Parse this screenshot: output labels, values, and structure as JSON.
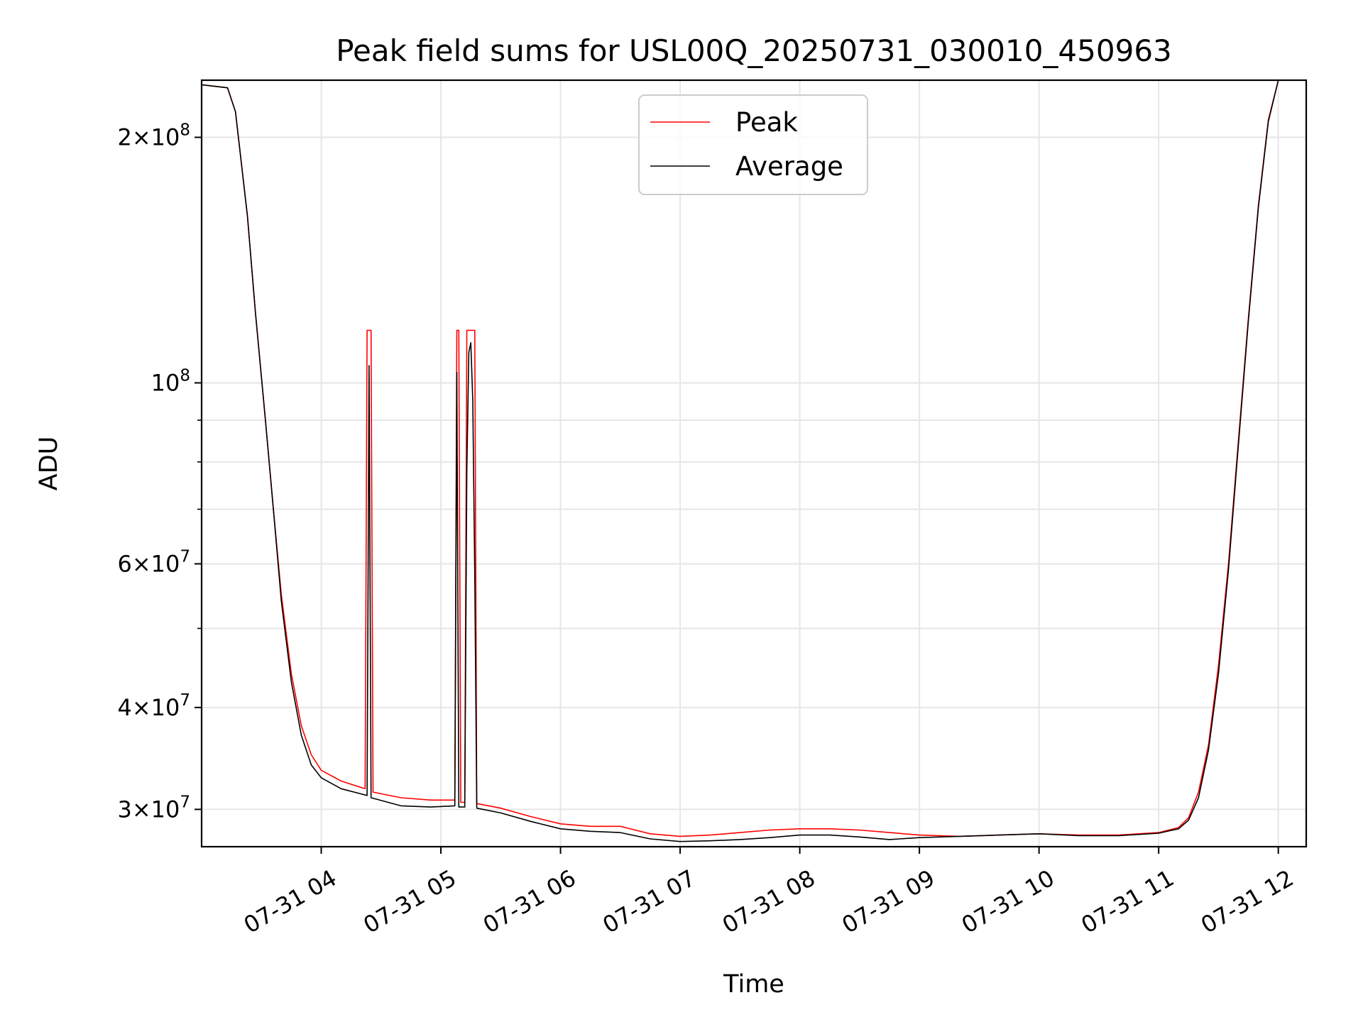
{
  "chart_data": {
    "type": "line",
    "title": "Peak field sums for USL00Q_20250731_030010_450963",
    "xlabel": "Time",
    "ylabel": "ADU",
    "y_scale": "log",
    "ylim": [
      27000000,
      235000000
    ],
    "xlim": [
      "2025-07-31T03:00",
      "2025-07-31T12:14"
    ],
    "grid": true,
    "legend_position": "upper center",
    "x_tick_labels": [
      "07-31 04",
      "07-31 05",
      "07-31 06",
      "07-31 07",
      "07-31 08",
      "07-31 09",
      "07-31 10",
      "07-31 11",
      "07-31 12"
    ],
    "x_ticks": [
      "2025-07-31T04:00",
      "2025-07-31T05:00",
      "2025-07-31T06:00",
      "2025-07-31T07:00",
      "2025-07-31T08:00",
      "2025-07-31T09:00",
      "2025-07-31T10:00",
      "2025-07-31T11:00",
      "2025-07-31T12:00"
    ],
    "y_major_ticks": [
      {
        "value": 30000000,
        "label_base": "3×10",
        "label_exp": "7"
      },
      {
        "value": 40000000,
        "label_base": "4×10",
        "label_exp": "7"
      },
      {
        "value": 60000000,
        "label_base": "6×10",
        "label_exp": "7"
      },
      {
        "value": 100000000,
        "label_base": "10",
        "label_exp": "8"
      },
      {
        "value": 200000000,
        "label_base": "2×10",
        "label_exp": "8"
      }
    ],
    "y_minor_ticks": [
      50000000,
      70000000,
      80000000,
      90000000
    ],
    "series": [
      {
        "name": "Peak",
        "color": "#ff0000",
        "points": [
          [
            "2025-07-31T03:00",
            232000000
          ],
          [
            "2025-07-31T03:13",
            230000000
          ],
          [
            "2025-07-31T03:17",
            215000000
          ],
          [
            "2025-07-31T03:23",
            160000000
          ],
          [
            "2025-07-31T03:27",
            122000000
          ],
          [
            "2025-07-31T03:32",
            90000000
          ],
          [
            "2025-07-31T03:36",
            70000000
          ],
          [
            "2025-07-31T03:40",
            55000000
          ],
          [
            "2025-07-31T03:45",
            44000000
          ],
          [
            "2025-07-31T03:50",
            38000000
          ],
          [
            "2025-07-31T03:55",
            35000000
          ],
          [
            "2025-07-31T04:00",
            33500000
          ],
          [
            "2025-07-31T04:10",
            32500000
          ],
          [
            "2025-07-31T04:22",
            31800000
          ],
          [
            "2025-07-31T04:23",
            116000000
          ],
          [
            "2025-07-31T04:25",
            116000000
          ],
          [
            "2025-07-31T04:26",
            31500000
          ],
          [
            "2025-07-31T04:40",
            31000000
          ],
          [
            "2025-07-31T04:55",
            30800000
          ],
          [
            "2025-07-31T05:07",
            30800000
          ],
          [
            "2025-07-31T05:08",
            116000000
          ],
          [
            "2025-07-31T05:09",
            116000000
          ],
          [
            "2025-07-31T05:10",
            30600000
          ],
          [
            "2025-07-31T05:12",
            30600000
          ],
          [
            "2025-07-31T05:13",
            116000000
          ],
          [
            "2025-07-31T05:17",
            116000000
          ],
          [
            "2025-07-31T05:18",
            30500000
          ],
          [
            "2025-07-31T05:30",
            30100000
          ],
          [
            "2025-07-31T05:45",
            29400000
          ],
          [
            "2025-07-31T06:00",
            28800000
          ],
          [
            "2025-07-31T06:15",
            28600000
          ],
          [
            "2025-07-31T06:30",
            28600000
          ],
          [
            "2025-07-31T06:45",
            28000000
          ],
          [
            "2025-07-31T07:00",
            27800000
          ],
          [
            "2025-07-31T07:15",
            27900000
          ],
          [
            "2025-07-31T07:30",
            28100000
          ],
          [
            "2025-07-31T07:45",
            28300000
          ],
          [
            "2025-07-31T08:00",
            28400000
          ],
          [
            "2025-07-31T08:15",
            28400000
          ],
          [
            "2025-07-31T08:30",
            28300000
          ],
          [
            "2025-07-31T08:45",
            28100000
          ],
          [
            "2025-07-31T09:00",
            27900000
          ],
          [
            "2025-07-31T09:20",
            27800000
          ],
          [
            "2025-07-31T09:40",
            27900000
          ],
          [
            "2025-07-31T10:00",
            28000000
          ],
          [
            "2025-07-31T10:20",
            27900000
          ],
          [
            "2025-07-31T10:40",
            27900000
          ],
          [
            "2025-07-31T11:00",
            28100000
          ],
          [
            "2025-07-31T11:10",
            28500000
          ],
          [
            "2025-07-31T11:15",
            29300000
          ],
          [
            "2025-07-31T11:20",
            31500000
          ],
          [
            "2025-07-31T11:25",
            36000000
          ],
          [
            "2025-07-31T11:30",
            45000000
          ],
          [
            "2025-07-31T11:35",
            60000000
          ],
          [
            "2025-07-31T11:40",
            85000000
          ],
          [
            "2025-07-31T11:45",
            120000000
          ],
          [
            "2025-07-31T11:50",
            165000000
          ],
          [
            "2025-07-31T11:55",
            210000000
          ],
          [
            "2025-07-31T12:00",
            235000000
          ]
        ]
      },
      {
        "name": "Average",
        "color": "#000000",
        "points": [
          [
            "2025-07-31T03:00",
            232000000
          ],
          [
            "2025-07-31T03:13",
            230000000
          ],
          [
            "2025-07-31T03:17",
            215000000
          ],
          [
            "2025-07-31T03:23",
            160000000
          ],
          [
            "2025-07-31T03:27",
            122000000
          ],
          [
            "2025-07-31T03:32",
            90000000
          ],
          [
            "2025-07-31T03:36",
            70000000
          ],
          [
            "2025-07-31T03:40",
            54000000
          ],
          [
            "2025-07-31T03:45",
            43000000
          ],
          [
            "2025-07-31T03:50",
            37000000
          ],
          [
            "2025-07-31T03:55",
            34000000
          ],
          [
            "2025-07-31T04:00",
            32800000
          ],
          [
            "2025-07-31T04:10",
            31800000
          ],
          [
            "2025-07-31T04:23",
            31200000
          ],
          [
            "2025-07-31T04:24",
            105000000
          ],
          [
            "2025-07-31T04:25",
            31000000
          ],
          [
            "2025-07-31T04:40",
            30300000
          ],
          [
            "2025-07-31T04:55",
            30200000
          ],
          [
            "2025-07-31T05:07",
            30300000
          ],
          [
            "2025-07-31T05:08",
            103000000
          ],
          [
            "2025-07-31T05:09",
            30200000
          ],
          [
            "2025-07-31T05:12",
            30200000
          ],
          [
            "2025-07-31T05:13",
            78000000
          ],
          [
            "2025-07-31T05:14",
            109000000
          ],
          [
            "2025-07-31T05:15",
            112000000
          ],
          [
            "2025-07-31T05:16",
            95000000
          ],
          [
            "2025-07-31T05:17",
            58000000
          ],
          [
            "2025-07-31T05:18",
            30100000
          ],
          [
            "2025-07-31T05:30",
            29700000
          ],
          [
            "2025-07-31T05:45",
            29000000
          ],
          [
            "2025-07-31T06:00",
            28400000
          ],
          [
            "2025-07-31T06:15",
            28200000
          ],
          [
            "2025-07-31T06:30",
            28100000
          ],
          [
            "2025-07-31T06:45",
            27600000
          ],
          [
            "2025-07-31T07:00",
            27400000
          ],
          [
            "2025-07-31T07:15",
            27450000
          ],
          [
            "2025-07-31T07:30",
            27550000
          ],
          [
            "2025-07-31T07:45",
            27700000
          ],
          [
            "2025-07-31T08:00",
            27900000
          ],
          [
            "2025-07-31T08:15",
            27900000
          ],
          [
            "2025-07-31T08:30",
            27750000
          ],
          [
            "2025-07-31T08:45",
            27550000
          ],
          [
            "2025-07-31T09:00",
            27700000
          ],
          [
            "2025-07-31T09:20",
            27800000
          ],
          [
            "2025-07-31T09:40",
            27900000
          ],
          [
            "2025-07-31T10:00",
            28000000
          ],
          [
            "2025-07-31T10:20",
            27850000
          ],
          [
            "2025-07-31T10:40",
            27850000
          ],
          [
            "2025-07-31T11:00",
            28050000
          ],
          [
            "2025-07-31T11:10",
            28400000
          ],
          [
            "2025-07-31T11:15",
            29100000
          ],
          [
            "2025-07-31T11:20",
            31000000
          ],
          [
            "2025-07-31T11:25",
            35500000
          ],
          [
            "2025-07-31T11:30",
            44000000
          ],
          [
            "2025-07-31T11:35",
            59000000
          ],
          [
            "2025-07-31T11:40",
            84000000
          ],
          [
            "2025-07-31T11:45",
            119000000
          ],
          [
            "2025-07-31T11:50",
            164000000
          ],
          [
            "2025-07-31T11:55",
            209000000
          ],
          [
            "2025-07-31T12:00",
            235000000
          ]
        ]
      }
    ]
  }
}
